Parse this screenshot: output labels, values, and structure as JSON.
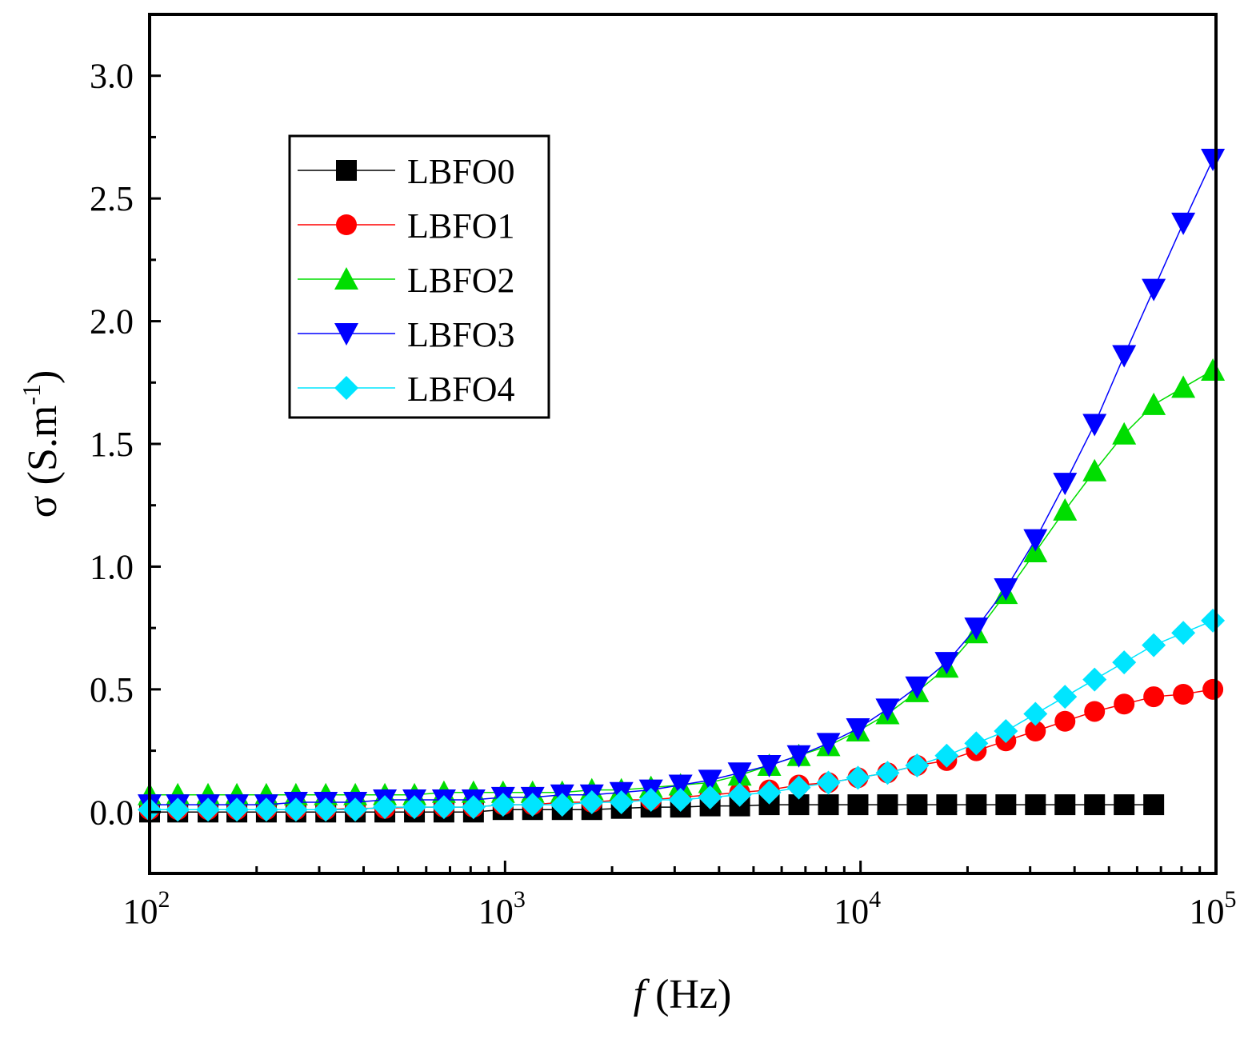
{
  "chart_data": {
    "type": "line",
    "xlabel": {
      "italic": "f",
      "rest": " (Hz)"
    },
    "ylabel": {
      "text": "σ (S.m",
      "sup": "-1",
      "close": ")"
    },
    "xscale": "log",
    "xlim": [
      100,
      100000
    ],
    "ylim": [
      -0.25,
      3.25
    ],
    "yticks": [
      "0.0",
      "0.5",
      "1.0",
      "1.5",
      "2.0",
      "2.5",
      "3.0"
    ],
    "xticks": [
      {
        "base": "10",
        "exp": "2"
      },
      {
        "base": "10",
        "exp": "3"
      },
      {
        "base": "10",
        "exp": "4"
      },
      {
        "base": "10",
        "exp": "5"
      }
    ],
    "grid": false,
    "legend_position": "top-left",
    "x": [
      100,
      120,
      146,
      176,
      213,
      258,
      313,
      379,
      459,
      556,
      673,
      815,
      987,
      1195,
      1448,
      1754,
      2124,
      2573,
      3116,
      3774,
      4571,
      5536,
      6705,
      8121,
      9836,
      11913,
      14428,
      17475,
      21165,
      25634,
      31047,
      37602,
      45542,
      55158,
      66804,
      80910,
      98000
    ],
    "series": [
      {
        "name": "LBFO0",
        "color": "#000000",
        "marker": "square",
        "values": [
          0.0,
          0.0,
          0.0,
          0.0,
          0.0,
          0.0,
          0.0,
          0.0,
          0.0,
          0.0,
          0.0,
          0.0,
          0.01,
          0.01,
          0.01,
          0.01,
          0.015,
          0.02,
          0.02,
          0.025,
          0.025,
          0.03,
          0.03,
          0.03,
          0.03,
          0.03,
          0.03,
          0.03,
          0.03,
          0.03,
          0.03,
          0.03,
          0.03,
          0.03,
          0.03,
          null,
          null
        ]
      },
      {
        "name": "LBFO1",
        "color": "#ff0000",
        "marker": "circle",
        "values": [
          0.01,
          0.01,
          0.01,
          0.01,
          0.01,
          0.01,
          0.01,
          0.015,
          0.015,
          0.02,
          0.02,
          0.02,
          0.03,
          0.03,
          0.04,
          0.04,
          0.05,
          0.05,
          0.06,
          0.07,
          0.08,
          0.09,
          0.11,
          0.12,
          0.14,
          0.16,
          0.19,
          0.21,
          0.25,
          0.29,
          0.33,
          0.37,
          0.41,
          0.44,
          0.47,
          0.48,
          0.5
        ]
      },
      {
        "name": "LBFO2",
        "color": "#00dd00",
        "marker": "triangle-up",
        "values": [
          0.07,
          0.07,
          0.07,
          0.07,
          0.07,
          0.07,
          0.07,
          0.07,
          0.07,
          0.07,
          0.08,
          0.08,
          0.08,
          0.08,
          0.08,
          0.09,
          0.09,
          0.1,
          0.11,
          0.12,
          0.15,
          0.19,
          0.23,
          0.27,
          0.33,
          0.4,
          0.49,
          0.59,
          0.73,
          0.89,
          1.06,
          1.23,
          1.39,
          1.54,
          1.66,
          1.73,
          1.8
        ]
      },
      {
        "name": "LBFO3",
        "color": "#0000ff",
        "marker": "triangle-down",
        "values": [
          0.03,
          0.03,
          0.03,
          0.03,
          0.03,
          0.04,
          0.04,
          0.04,
          0.05,
          0.05,
          0.05,
          0.05,
          0.06,
          0.06,
          0.07,
          0.07,
          0.08,
          0.09,
          0.11,
          0.13,
          0.16,
          0.19,
          0.23,
          0.28,
          0.34,
          0.42,
          0.51,
          0.61,
          0.75,
          0.91,
          1.11,
          1.34,
          1.58,
          1.86,
          2.13,
          2.4,
          2.66
        ]
      },
      {
        "name": "LBFO4",
        "color": "#00e5ff",
        "marker": "diamond",
        "values": [
          0.01,
          0.01,
          0.01,
          0.01,
          0.01,
          0.01,
          0.01,
          0.01,
          0.02,
          0.02,
          0.02,
          0.02,
          0.03,
          0.03,
          0.03,
          0.04,
          0.04,
          0.05,
          0.05,
          0.06,
          0.07,
          0.08,
          0.1,
          0.12,
          0.14,
          0.16,
          0.19,
          0.23,
          0.28,
          0.33,
          0.4,
          0.47,
          0.54,
          0.61,
          0.68,
          0.73,
          0.78
        ]
      }
    ]
  }
}
